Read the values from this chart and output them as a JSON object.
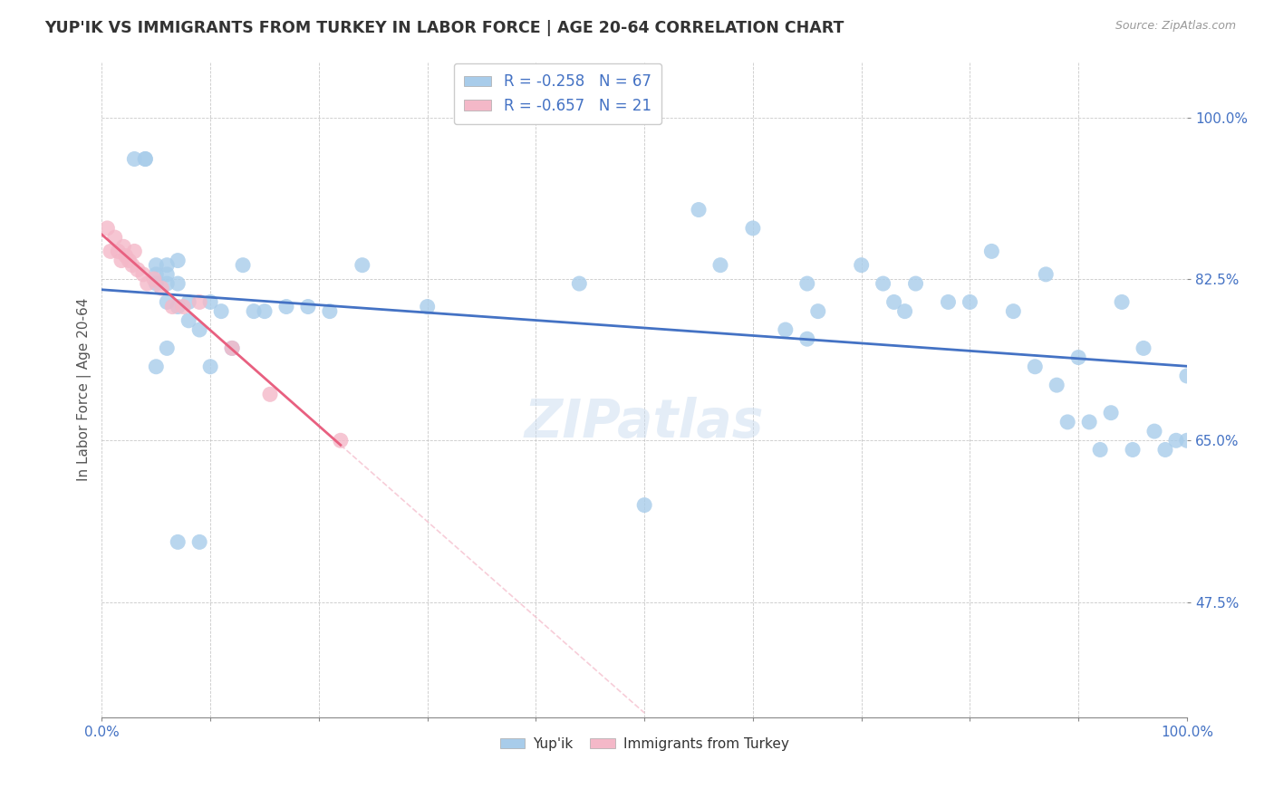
{
  "title": "YUP'IK VS IMMIGRANTS FROM TURKEY IN LABOR FORCE | AGE 20-64 CORRELATION CHART",
  "source": "Source: ZipAtlas.com",
  "ylabel": "In Labor Force | Age 20-64",
  "ytick_labels": [
    "100.0%",
    "82.5%",
    "65.0%",
    "47.5%"
  ],
  "ytick_values": [
    1.0,
    0.825,
    0.65,
    0.475
  ],
  "xlim": [
    0.0,
    1.0
  ],
  "ylim": [
    0.35,
    1.06
  ],
  "watermark": "ZIPatlas",
  "blue_color": "#A8CCEA",
  "pink_color": "#F4B8C8",
  "blue_line_color": "#4472C4",
  "pink_line_color": "#E86080",
  "pink_dashed_color": "#F4B8C8",
  "yupik_x": [
    0.03,
    0.04,
    0.04,
    0.05,
    0.05,
    0.05,
    0.06,
    0.06,
    0.06,
    0.06,
    0.07,
    0.07,
    0.07,
    0.08,
    0.08,
    0.09,
    0.1,
    0.1,
    0.11,
    0.12,
    0.13,
    0.14,
    0.15,
    0.17,
    0.19,
    0.21,
    0.24,
    0.3,
    0.44,
    0.5,
    0.55,
    0.57,
    0.6,
    0.63,
    0.65,
    0.66,
    0.7,
    0.72,
    0.73,
    0.74,
    0.75,
    0.78,
    0.8,
    0.82,
    0.84,
    0.86,
    0.87,
    0.88,
    0.89,
    0.9,
    0.91,
    0.92,
    0.93,
    0.94,
    0.95,
    0.96,
    0.97,
    0.98,
    0.99,
    1.0,
    1.0,
    0.07,
    0.06,
    0.05,
    0.09,
    0.65
  ],
  "yupik_y": [
    0.955,
    0.955,
    0.955,
    0.84,
    0.83,
    0.82,
    0.84,
    0.83,
    0.82,
    0.8,
    0.845,
    0.82,
    0.795,
    0.8,
    0.78,
    0.77,
    0.8,
    0.73,
    0.79,
    0.75,
    0.84,
    0.79,
    0.79,
    0.795,
    0.795,
    0.79,
    0.84,
    0.795,
    0.82,
    0.58,
    0.9,
    0.84,
    0.88,
    0.77,
    0.82,
    0.79,
    0.84,
    0.82,
    0.8,
    0.79,
    0.82,
    0.8,
    0.8,
    0.855,
    0.79,
    0.73,
    0.83,
    0.71,
    0.67,
    0.74,
    0.67,
    0.64,
    0.68,
    0.8,
    0.64,
    0.75,
    0.66,
    0.64,
    0.65,
    0.72,
    0.65,
    0.54,
    0.75,
    0.73,
    0.54,
    0.76
  ],
  "turkey_x": [
    0.005,
    0.008,
    0.012,
    0.015,
    0.018,
    0.02,
    0.022,
    0.025,
    0.028,
    0.03,
    0.033,
    0.038,
    0.042,
    0.048,
    0.055,
    0.065,
    0.075,
    0.09,
    0.12,
    0.155,
    0.22
  ],
  "turkey_y": [
    0.88,
    0.855,
    0.87,
    0.855,
    0.845,
    0.86,
    0.85,
    0.845,
    0.84,
    0.855,
    0.835,
    0.83,
    0.82,
    0.825,
    0.815,
    0.795,
    0.795,
    0.8,
    0.75,
    0.7,
    0.65
  ]
}
